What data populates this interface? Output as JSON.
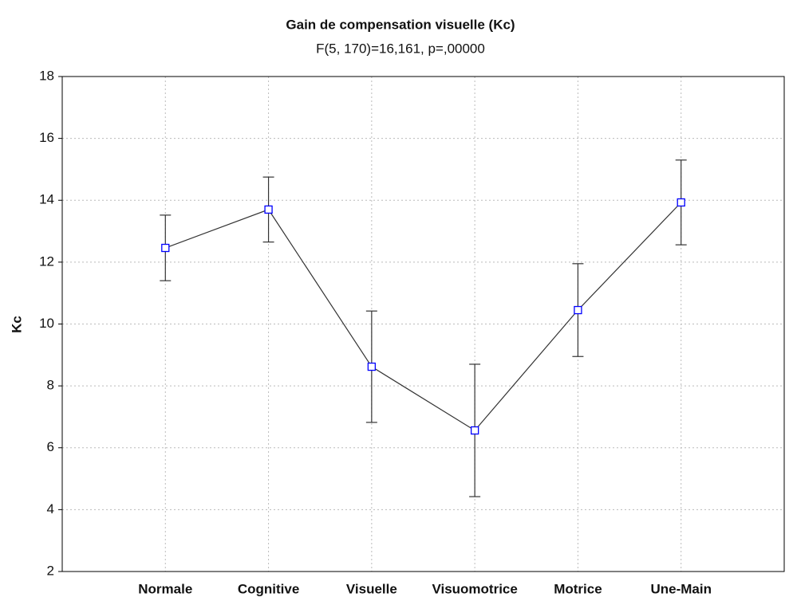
{
  "chart_data": {
    "type": "line",
    "title": "Gain de compensation visuelle (Kc)",
    "subtitle": "F(5, 170)=16,161, p=,00000",
    "y_label": "Kc",
    "categories": [
      "Normale",
      "Cognitive",
      "Visuelle",
      "Visuomotrice",
      "Motrice",
      "Une-Main"
    ],
    "series": [
      {
        "color": "#0000ff",
        "line_color": "#333333",
        "values": [
          12.46,
          13.7,
          8.62,
          6.56,
          10.45,
          13.93
        ],
        "errors": [
          1.06,
          1.05,
          1.8,
          2.14,
          1.5,
          1.37
        ]
      }
    ],
    "ylim": [
      2,
      18
    ],
    "yticks": [
      2,
      4,
      6,
      8,
      10,
      12,
      14,
      16,
      18
    ],
    "grid": true
  }
}
